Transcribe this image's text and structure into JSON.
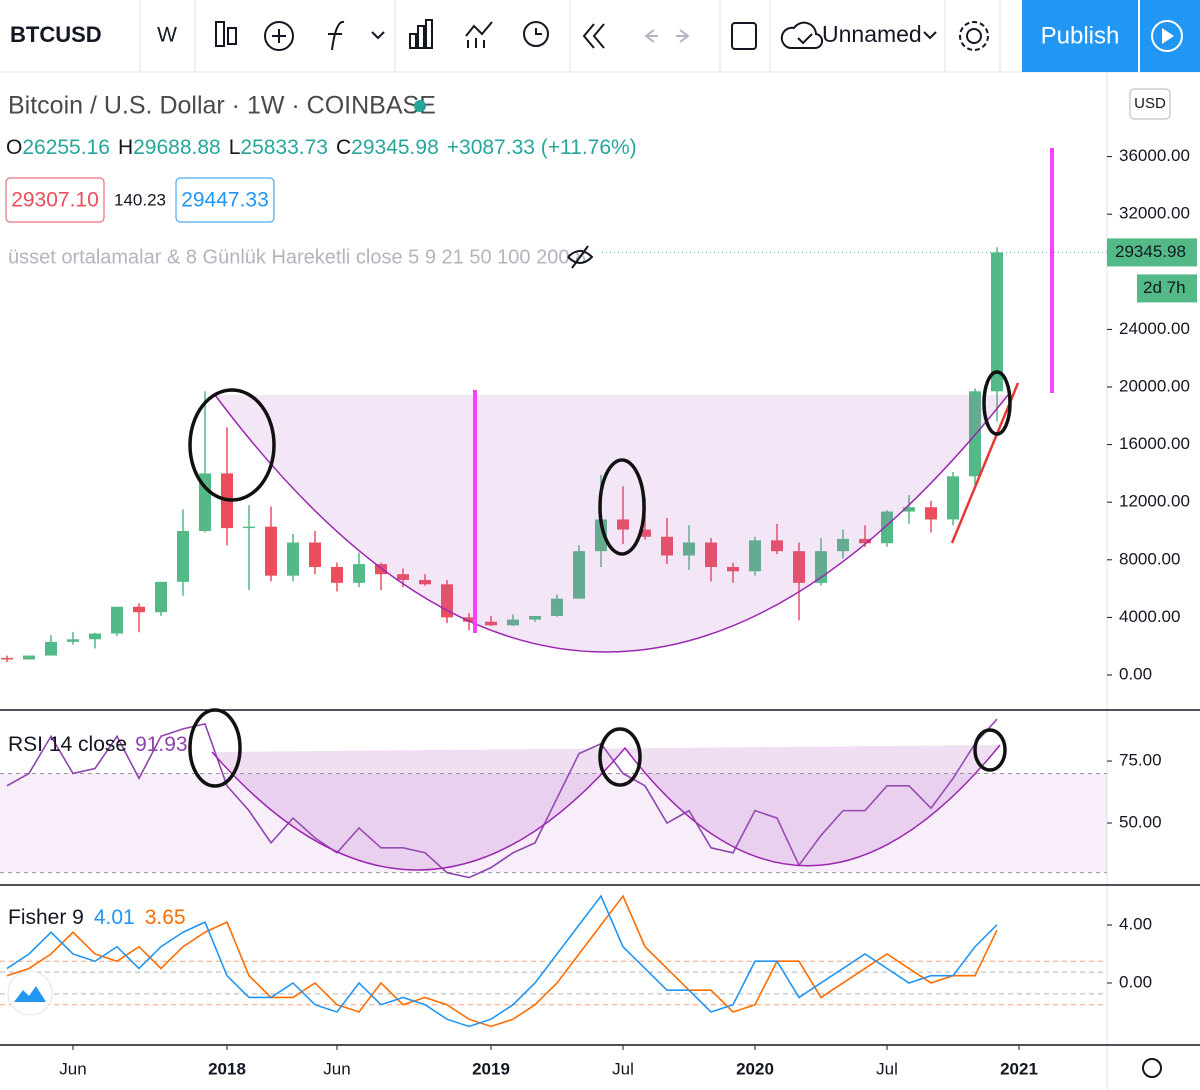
{
  "toolbar": {
    "symbol": "BTCUSD",
    "interval": "W",
    "layout": "Unnamed",
    "publish": "Publish"
  },
  "header": {
    "title": "Bitcoin / U.S. Dollar · 1W · COINBASE",
    "ohlc": [
      {
        "label": "O",
        "value": "26255.16"
      },
      {
        "label": "H",
        "value": "29688.88"
      },
      {
        "label": "L",
        "value": "25833.73"
      },
      {
        "label": "C",
        "value": "29345.98"
      }
    ],
    "change": "+3087.33 (+11.76%)",
    "bid": "29307.10",
    "spread": "140.23",
    "ask": "29447.33",
    "indicator": "üsset ortalamalar & 8 Günlük Hareketli close 5 9 21 50 100 200 8",
    "currency": "USD",
    "countdown": "2d 7h"
  },
  "chart_data": [
    {
      "type": "candlestick",
      "categories": [
        null,
        null,
        null,
        "Jun",
        null,
        null,
        null,
        null,
        null,
        null,
        "2018",
        null,
        null,
        null,
        null,
        "Jun",
        null,
        null,
        null,
        null,
        null,
        null,
        "2019",
        null,
        null,
        null,
        null,
        null,
        "Jul",
        null,
        null,
        null,
        null,
        null,
        "2020",
        null,
        null,
        null,
        null,
        null,
        "Jul",
        null,
        null,
        null,
        null,
        null,
        "2021",
        null,
        null,
        null
      ],
      "open": [
        1190,
        1080,
        1350,
        2300,
        2480,
        2880,
        4740,
        4360,
        6470,
        10000,
        14000,
        10200,
        10300,
        6900,
        9200,
        7500,
        6400,
        7700,
        7000,
        6600,
        6300,
        4000,
        3700,
        3450,
        3850,
        4100,
        5300,
        8600,
        10800,
        10100,
        9600,
        8300,
        9200,
        7500,
        7200,
        9350,
        8600,
        6400,
        8600,
        9450,
        9150,
        11350,
        11650,
        10800,
        13800,
        19700,
        null,
        null,
        null,
        null
      ],
      "high": [
        1350,
        1350,
        2760,
        3000,
        2930,
        4750,
        4980,
        6470,
        11500,
        19700,
        17200,
        11800,
        11700,
        9800,
        10000,
        7800,
        8500,
        7800,
        7400,
        7000,
        6600,
        4300,
        4100,
        4200,
        4100,
        5600,
        9000,
        13900,
        13100,
        12300,
        10900,
        10400,
        9500,
        7800,
        9600,
        10500,
        9200,
        9500,
        10100,
        10400,
        11450,
        12500,
        12100,
        14100,
        19900,
        29700,
        null,
        null,
        null,
        null
      ],
      "low": [
        890,
        1070,
        1350,
        2100,
        1840,
        2700,
        2970,
        4110,
        5500,
        9900,
        9000,
        5900,
        6500,
        6500,
        7000,
        5800,
        6100,
        5900,
        6100,
        6200,
        3600,
        3100,
        3400,
        3400,
        3700,
        4050,
        5300,
        7500,
        9100,
        9400,
        7700,
        7300,
        6500,
        6400,
        6900,
        8400,
        3800,
        6200,
        8100,
        8900,
        8900,
        10500,
        9900,
        10400,
        13200,
        17600,
        null,
        null,
        null,
        null
      ],
      "close": [
        1080,
        1350,
        2300,
        2480,
        2880,
        4740,
        4360,
        6470,
        10000,
        14000,
        10200,
        10300,
        6900,
        9200,
        7500,
        6400,
        7700,
        7000,
        6600,
        6300,
        4000,
        3700,
        3450,
        3850,
        4100,
        5300,
        8600,
        10800,
        10100,
        9600,
        8300,
        9200,
        7500,
        7200,
        9350,
        8600,
        6400,
        8600,
        9450,
        9150,
        11350,
        11650,
        10800,
        13800,
        19700,
        29345.98,
        null,
        null,
        null,
        null
      ],
      "up_color": "#53b987",
      "down_color": "#eb4d5c",
      "ylim": [
        -2431,
        41875
      ],
      "yticks": [
        {
          "value": 0,
          "label": "0.00"
        },
        {
          "value": 4000,
          "label": "4000.00"
        },
        {
          "value": 8000,
          "label": "8000.00"
        },
        {
          "value": 12000,
          "label": "12000.00"
        },
        {
          "value": 16000,
          "label": "16000.00"
        },
        {
          "value": 20000,
          "label": "20000.00"
        },
        {
          "value": 24000,
          "label": "24000.00"
        },
        {
          "value": 32000,
          "label": "32000.00"
        },
        {
          "value": 36000,
          "label": "36000.00"
        }
      ]
    },
    {
      "type": "line",
      "title": "RSI 14 close",
      "series": [
        {
          "color": "#8e44ad",
          "values": [
            65,
            70,
            85,
            70,
            72,
            85,
            68,
            85,
            88,
            90,
            65,
            55,
            42,
            52,
            44,
            38,
            48,
            40,
            40,
            38,
            30,
            28,
            32,
            38,
            42,
            60,
            78,
            82,
            70,
            65,
            50,
            55,
            40,
            38,
            55,
            52,
            33,
            45,
            55,
            55,
            65,
            65,
            56,
            68,
            82,
            91.93,
            null,
            null,
            null,
            null
          ]
        }
      ],
      "band": [
        30,
        70
      ],
      "ylim": [
        25,
        95.6
      ],
      "yticks": [
        {
          "value": 50,
          "label": "50.00"
        },
        {
          "value": 75,
          "label": "75.00"
        }
      ]
    },
    {
      "type": "line",
      "title": "Fisher 9",
      "series": [
        {
          "color": "#2196f3",
          "values": [
            1,
            2,
            3.5,
            2,
            1.5,
            2.5,
            1,
            2.5,
            3.5,
            4.2,
            0.5,
            -1,
            -1,
            0,
            -1.5,
            -2,
            0,
            -1.5,
            -1,
            -1.5,
            -2.5,
            -3,
            -2.5,
            -1.5,
            0,
            2,
            4,
            6,
            2.5,
            1,
            -0.5,
            -0.5,
            -2,
            -1.5,
            1.5,
            1.5,
            -1,
            0,
            1,
            2,
            1,
            0,
            0.5,
            0.5,
            2.5,
            4.01,
            null,
            null,
            null,
            null
          ]
        },
        {
          "color": "#ff6d00",
          "values": [
            0.5,
            1,
            2,
            3.5,
            2,
            1.5,
            2.5,
            1,
            2.5,
            3.5,
            4.2,
            0.5,
            -1,
            -1,
            0,
            -1.5,
            -2,
            0,
            -1.5,
            -1,
            -1.5,
            -2.5,
            -3,
            -2.5,
            -1.5,
            0,
            2,
            4,
            6,
            2.5,
            1,
            -0.5,
            -0.5,
            -2,
            -1.5,
            1.5,
            1.5,
            -1,
            0,
            1,
            2,
            1,
            0,
            0.5,
            0.5,
            3.65,
            null,
            null,
            null,
            null
          ]
        }
      ],
      "levels": [
        1.5,
        0.75,
        -0.75,
        -1.5
      ],
      "ylim": [
        -4.28,
        6.76
      ],
      "yticks": [
        {
          "value": 0,
          "label": "0.00"
        },
        {
          "value": 4,
          "label": "4.00"
        }
      ]
    }
  ]
}
